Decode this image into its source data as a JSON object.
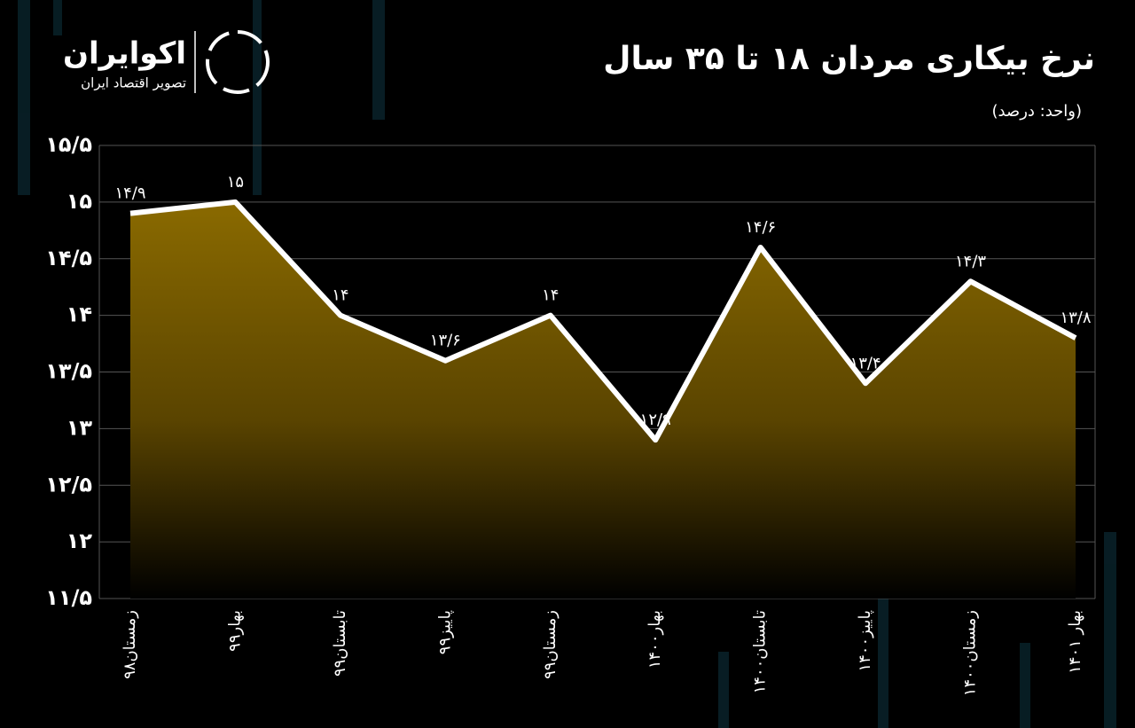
{
  "brand": {
    "name": "اکوایران",
    "tagline": "تصویر اقتصاد ایران"
  },
  "chart_data": {
    "type": "area",
    "title": "نرخ بیکاری مردان ۱۸ تا ۳۵ سال",
    "subtitle": "(واحد: درصد)",
    "categories": [
      "زمستان۹۸",
      "بهار۹۹",
      "تابستان۹۹",
      "پاییز۹۹",
      "زمستان۹۹",
      "بهار۱۴۰۰",
      "تابستان۱۴۰۰",
      "پاییز۱۴۰۰",
      "زمستان۱۴۰۰",
      "بهار ۱۴۰۱"
    ],
    "values": [
      14.9,
      15,
      14,
      13.6,
      14,
      12.9,
      14.6,
      13.4,
      14.3,
      13.8
    ],
    "value_labels": [
      "۱۴/۹",
      "۱۵",
      "۱۴",
      "۱۳/۶",
      "۱۴",
      "۱۲/۹",
      "۱۴/۶",
      "۱۳/۴",
      "۱۴/۳",
      "۱۳/۸"
    ],
    "color": "#ffffff",
    "area_color": "#8a6a00",
    "ylim": [
      11.5,
      15.5
    ],
    "yticks": [
      {
        "value": 11.5,
        "label": "۱۱/۵"
      },
      {
        "value": 12,
        "label": "۱۲"
      },
      {
        "value": 12.5,
        "label": "۱۲/۵"
      },
      {
        "value": 13,
        "label": "۱۳"
      },
      {
        "value": 13.5,
        "label": "۱۳/۵"
      },
      {
        "value": 14,
        "label": "۱۴"
      },
      {
        "value": 14.5,
        "label": "۱۴/۵"
      },
      {
        "value": 15,
        "label": "۱۵"
      },
      {
        "value": 15.5,
        "label": "۱۵/۵"
      }
    ],
    "grid": true
  }
}
